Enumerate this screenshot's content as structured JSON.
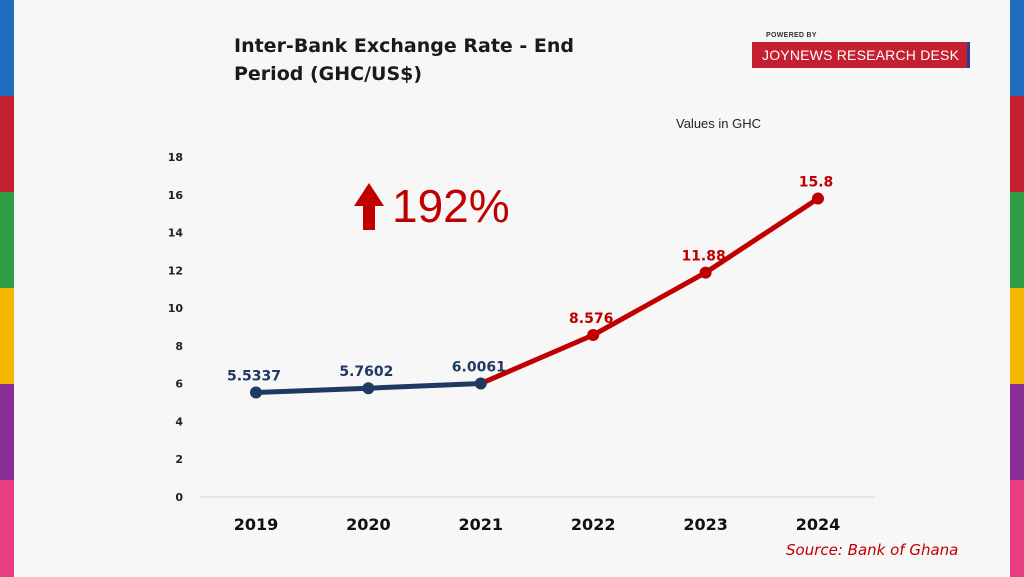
{
  "header": {
    "title_line1": "Inter-Bank Exchange Rate - End",
    "title_line2": "Period (GHC/US$)",
    "powered_by": "POWERED BY",
    "brand": "JOYNEWS RESEARCH DESK"
  },
  "note": "Values in GHC",
  "source": "Source: Bank of Ghana",
  "highlight": {
    "text": "192%",
    "icon": "up-arrow-icon",
    "color": "#c00000"
  },
  "colors": {
    "series_blue": "#1f3864",
    "series_red": "#c00000",
    "stripe": [
      "#1f6fbf",
      "#c4202f",
      "#2e9e45",
      "#f5b800",
      "#8a2f96",
      "#e83d84"
    ]
  },
  "chart_data": {
    "type": "line",
    "x": [
      "2019",
      "2020",
      "2021",
      "2022",
      "2023",
      "2024"
    ],
    "values": [
      5.5337,
      5.7602,
      6.0061,
      8.576,
      11.88,
      15.8
    ],
    "labels": [
      "5.5337",
      "5.7602",
      "6.0061",
      "8.576",
      "11.88",
      "15.8"
    ],
    "ylim": [
      0,
      18
    ],
    "yticks": [
      "0",
      "2",
      "4",
      "6",
      "8",
      "10",
      "12",
      "14",
      "16",
      "18"
    ],
    "segments": [
      {
        "from": 0,
        "to": 2,
        "color": "#1f3864"
      },
      {
        "from": 2,
        "to": 5,
        "color": "#c00000"
      }
    ],
    "grid": false
  }
}
